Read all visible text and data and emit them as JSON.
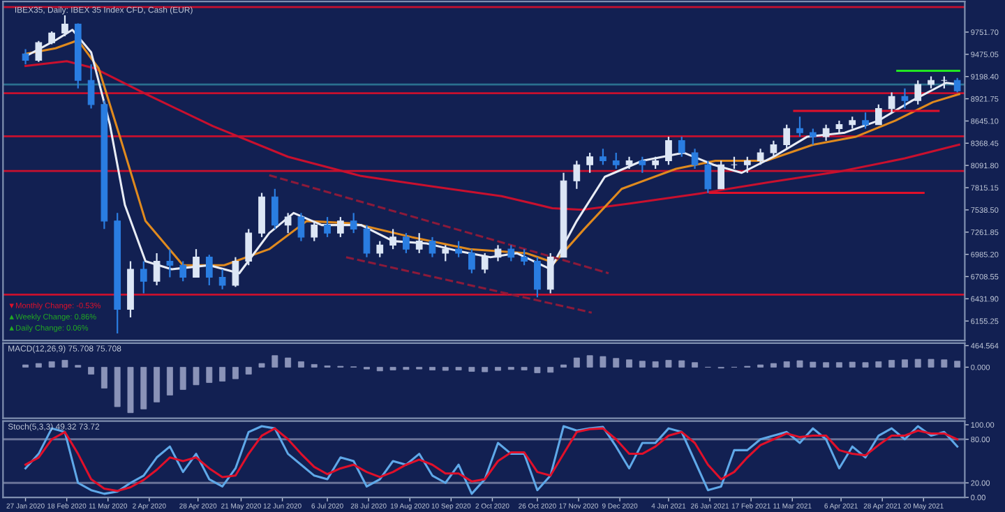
{
  "chart_data": [
    {
      "type": "candlestick",
      "title": "IBEX35, Daily: IBEX 35 Index CFD, Cash (EUR)",
      "tick_labels": "y",
      "xlim": [
        "2020-01-15",
        "2021-06-11"
      ],
      "ylim": [
        5913,
        10132
      ],
      "yticks": [
        {
          "value": 9751.7,
          "label": "9751.70"
        },
        {
          "value": 9475.05,
          "label": "9475.05"
        },
        {
          "value": 9198.4,
          "label": "9198.40"
        },
        {
          "value": 8921.75,
          "label": "8921.75"
        },
        {
          "value": 8645.1,
          "label": "8645.10"
        },
        {
          "value": 8368.45,
          "label": "8368.45"
        },
        {
          "value": 8091.8,
          "label": "8091.80"
        },
        {
          "value": 7815.15,
          "label": "7815.15"
        },
        {
          "value": 7538.5,
          "label": "7538.50"
        },
        {
          "value": 7261.85,
          "label": "7261.85"
        },
        {
          "value": 6985.2,
          "label": "6985.20"
        },
        {
          "value": 6708.55,
          "label": "6708.55"
        },
        {
          "value": 6431.9,
          "label": "6431.90"
        },
        {
          "value": 6155.25,
          "label": "6155.25"
        }
      ],
      "annotations": [
        "▼Monthly Change: -0.53%",
        "▲Weekly Change: 0.86%",
        "▲Daily Change: 0.06%"
      ],
      "ref_lines": [
        {
          "axis": "y",
          "value": 10063,
          "color": "#c8102e",
          "line_style": "solid"
        },
        {
          "axis": "y",
          "value": 9100,
          "color": "#2a6f8f",
          "line_style": "solid"
        },
        {
          "axis": "y",
          "value": 8990,
          "color": "#c8102e",
          "line_style": "solid"
        },
        {
          "axis": "y",
          "value": 8455,
          "color": "#c8102e",
          "line_style": "solid"
        },
        {
          "axis": "y",
          "value": 8023,
          "color": "#c8102e",
          "line_style": "solid"
        },
        {
          "axis": "y",
          "value": 6484,
          "color": "#c8102e",
          "line_style": "solid"
        }
      ],
      "series": [
        {
          "colors": [
            "#2a7de1",
            "#dce6f5",
            "#dce6f5",
            "#dce6f5",
            "#2a7de1",
            "#2a7de1",
            "#2a7de1",
            "#2a7de1",
            "#dce6f5",
            "#2a7de1",
            "#dce6f5",
            "#2a7de1",
            "#2a7de1",
            "#dce6f5",
            "#2a7de1",
            "#2a7de1",
            "#dce6f5",
            "#dce6f5",
            "#dce6f5",
            "#2a7de1",
            "#dce6f5",
            "#2a7de1",
            "#dce6f5",
            "#2a7de1",
            "#dce6f5",
            "#2a7de1",
            "#2a7de1",
            "#dce6f5",
            "#dce6f5",
            "#2a7de1",
            "#dce6f5",
            "#2a7de1",
            "#dce6f5",
            "#2a7de1",
            "#2a7de1",
            "#dce6f5",
            "#dce6f5",
            "#2a7de1",
            "#2a7de1",
            "#2a7de1",
            "#dce6f5",
            "#dce6f5",
            "#dce6f5",
            "#dce6f5",
            "#2a7de1",
            "#2a7de1",
            "#dce6f5",
            "#2a7de1",
            "#dce6f5",
            "#dce6f5",
            "#2a7de1",
            "#2a7de1",
            "#2a7de1",
            "#dce6f5",
            "#dce6f5",
            "#dce6f5",
            "#dce6f5",
            "#dce6f5",
            "#dce6f5",
            "#2a7de1",
            "#2a7de1",
            "#dce6f5",
            "#dce6f5",
            "#dce6f5",
            "#2a7de1",
            "#dce6f5",
            "#dce6f5",
            "#2a7de1",
            "#dce6f5",
            "#dce6f5",
            "#dce6f5",
            "#2a7de1"
          ],
          "x": [
            "2020-01-27",
            "2020-02-03",
            "2020-02-10",
            "2020-02-17",
            "2020-02-24",
            "2020-03-02",
            "2020-03-09",
            "2020-03-16",
            "2020-03-23",
            "2020-03-30",
            "2020-04-06",
            "2020-04-13",
            "2020-04-20",
            "2020-04-27",
            "2020-05-04",
            "2020-05-11",
            "2020-05-18",
            "2020-05-25",
            "2020-06-01",
            "2020-06-08",
            "2020-06-15",
            "2020-06-22",
            "2020-06-29",
            "2020-07-06",
            "2020-07-13",
            "2020-07-20",
            "2020-07-27",
            "2020-08-03",
            "2020-08-10",
            "2020-08-17",
            "2020-08-24",
            "2020-08-31",
            "2020-09-07",
            "2020-09-14",
            "2020-09-21",
            "2020-09-28",
            "2020-10-05",
            "2020-10-12",
            "2020-10-19",
            "2020-10-26",
            "2020-11-02",
            "2020-11-09",
            "2020-11-16",
            "2020-11-23",
            "2020-11-30",
            "2020-12-07",
            "2020-12-14",
            "2020-12-21",
            "2020-12-28",
            "2021-01-04",
            "2021-01-11",
            "2021-01-18",
            "2021-01-25",
            "2021-02-01",
            "2021-02-08",
            "2021-02-15",
            "2021-02-22",
            "2021-03-01",
            "2021-03-08",
            "2021-03-15",
            "2021-03-22",
            "2021-03-29",
            "2021-04-05",
            "2021-04-12",
            "2021-04-19",
            "2021-04-26",
            "2021-05-03",
            "2021-05-10",
            "2021-05-17",
            "2021-05-24",
            "2021-05-31",
            "2021-06-07"
          ],
          "ohlc": [
            [
              9480,
              9540,
              9350,
              9400
            ],
            [
              9400,
              9640,
              9380,
              9620
            ],
            [
              9620,
              9760,
              9600,
              9740
            ],
            [
              9740,
              9960,
              9700,
              9850
            ],
            [
              9850,
              9860,
              9050,
              9150
            ],
            [
              9150,
              9350,
              8800,
              8850
            ],
            [
              8850,
              8900,
              7300,
              7400
            ],
            [
              7400,
              7500,
              6000,
              6300
            ],
            [
              6300,
              6900,
              6200,
              6800
            ],
            [
              6800,
              6900,
              6500,
              6650
            ],
            [
              6650,
              7000,
              6600,
              6900
            ],
            [
              6900,
              7050,
              6700,
              6850
            ],
            [
              6850,
              6900,
              6650,
              6700
            ],
            [
              6700,
              7050,
              6700,
              6950
            ],
            [
              6950,
              6980,
              6600,
              6700
            ],
            [
              6700,
              6800,
              6550,
              6600
            ],
            [
              6600,
              6950,
              6580,
              6900
            ],
            [
              6900,
              7300,
              6850,
              7250
            ],
            [
              7250,
              7750,
              7200,
              7700
            ],
            [
              7700,
              7800,
              7300,
              7350
            ],
            [
              7350,
              7500,
              7250,
              7450
            ],
            [
              7450,
              7500,
              7150,
              7200
            ],
            [
              7200,
              7400,
              7150,
              7350
            ],
            [
              7350,
              7450,
              7200,
              7250
            ],
            [
              7250,
              7450,
              7200,
              7400
            ],
            [
              7400,
              7500,
              7250,
              7300
            ],
            [
              7300,
              7350,
              6950,
              7000
            ],
            [
              7000,
              7150,
              6950,
              7100
            ],
            [
              7100,
              7300,
              7050,
              7200
            ],
            [
              7200,
              7250,
              7000,
              7050
            ],
            [
              7050,
              7250,
              7000,
              7150
            ],
            [
              7150,
              7200,
              6950,
              7000
            ],
            [
              7000,
              7100,
              6900,
              7050
            ],
            [
              7050,
              7150,
              6950,
              7000
            ],
            [
              7000,
              7050,
              6750,
              6800
            ],
            [
              6800,
              7000,
              6750,
              6950
            ],
            [
              6950,
              7100,
              6900,
              7050
            ],
            [
              7050,
              7100,
              6900,
              6950
            ],
            [
              6950,
              7050,
              6850,
              6900
            ],
            [
              6900,
              6950,
              6450,
              6550
            ],
            [
              6550,
              7000,
              6500,
              6950
            ],
            [
              6950,
              8000,
              6950,
              7900
            ],
            [
              7900,
              8150,
              7800,
              8100
            ],
            [
              8100,
              8250,
              8000,
              8200
            ],
            [
              8200,
              8300,
              8100,
              8150
            ],
            [
              8150,
              8250,
              8050,
              8100
            ],
            [
              8100,
              8200,
              8050,
              8150
            ],
            [
              8150,
              8200,
              8000,
              8100
            ],
            [
              8100,
              8200,
              8050,
              8150
            ],
            [
              8150,
              8450,
              8100,
              8400
            ],
            [
              8400,
              8450,
              8200,
              8250
            ],
            [
              8250,
              8300,
              8050,
              8100
            ],
            [
              8100,
              8150,
              7750,
              7800
            ],
            [
              7800,
              8150,
              7800,
              8100
            ],
            [
              8100,
              8200,
              8050,
              8100
            ],
            [
              8100,
              8200,
              8000,
              8150
            ],
            [
              8150,
              8300,
              8100,
              8250
            ],
            [
              8250,
              8400,
              8200,
              8350
            ],
            [
              8350,
              8600,
              8300,
              8550
            ],
            [
              8550,
              8700,
              8450,
              8500
            ],
            [
              8500,
              8550,
              8350,
              8450
            ],
            [
              8450,
              8600,
              8400,
              8550
            ],
            [
              8550,
              8650,
              8500,
              8600
            ],
            [
              8600,
              8700,
              8550,
              8650
            ],
            [
              8650,
              8750,
              8550,
              8600
            ],
            [
              8600,
              8850,
              8600,
              8800
            ],
            [
              8800,
              9000,
              8750,
              8950
            ],
            [
              8950,
              9050,
              8800,
              8900
            ],
            [
              8900,
              9150,
              8850,
              9100
            ],
            [
              9100,
              9200,
              9050,
              9150
            ],
            [
              9150,
              9200,
              9050,
              9150
            ],
            [
              9150,
              9180,
              9000,
              9020
            ]
          ]
        },
        {
          "type": "line",
          "color": "#c8102e",
          "x": [
            "2020-01-27",
            "2020-02-18",
            "2020-03-04",
            "2020-04-02",
            "2020-05-06",
            "2020-06-15",
            "2020-07-24",
            "2020-08-31",
            "2020-10-07",
            "2020-11-03",
            "2020-11-19",
            "2020-12-15",
            "2021-01-20",
            "2021-02-26",
            "2021-04-06",
            "2021-05-10",
            "2021-06-08"
          ],
          "values": [
            9330,
            9390,
            9300,
            8960,
            8580,
            8200,
            7960,
            7830,
            7710,
            7560,
            7540,
            7620,
            7740,
            7880,
            8020,
            8180,
            8350
          ]
        },
        {
          "type": "line",
          "color": "#e08a1e",
          "x": [
            "2020-01-27",
            "2020-02-12",
            "2020-02-24",
            "2020-03-06",
            "2020-03-18",
            "2020-03-31",
            "2020-04-20",
            "2020-05-12",
            "2020-06-05",
            "2020-06-25",
            "2020-07-20",
            "2020-08-20",
            "2020-09-20",
            "2020-10-20",
            "2020-11-04",
            "2020-11-20",
            "2020-12-10",
            "2021-01-08",
            "2021-01-29",
            "2021-02-25",
            "2021-03-22",
            "2021-04-14",
            "2021-05-05",
            "2021-05-25",
            "2021-06-08"
          ],
          "values": [
            9480,
            9550,
            9650,
            9300,
            8400,
            7400,
            6850,
            6850,
            7050,
            7400,
            7370,
            7200,
            7050,
            7000,
            6880,
            7300,
            7800,
            8050,
            8150,
            8150,
            8350,
            8450,
            8650,
            8880,
            8980
          ]
        },
        {
          "type": "line",
          "color": "#e8ecf4",
          "x": [
            "2020-01-27",
            "2020-02-12",
            "2020-02-21",
            "2020-03-02",
            "2020-03-12",
            "2020-03-20",
            "2020-03-31",
            "2020-04-14",
            "2020-05-04",
            "2020-05-20",
            "2020-06-05",
            "2020-06-18",
            "2020-07-03",
            "2020-07-24",
            "2020-08-10",
            "2020-08-28",
            "2020-09-15",
            "2020-10-01",
            "2020-10-15",
            "2020-11-02",
            "2020-11-16",
            "2020-12-01",
            "2020-12-21",
            "2021-01-12",
            "2021-01-28",
            "2021-02-12",
            "2021-03-01",
            "2021-03-19",
            "2021-04-08",
            "2021-04-26",
            "2021-05-14",
            "2021-06-01",
            "2021-06-08"
          ],
          "values": [
            9450,
            9650,
            9780,
            9500,
            8600,
            7600,
            6900,
            6800,
            6850,
            6750,
            7250,
            7500,
            7350,
            7350,
            7150,
            7120,
            7020,
            6950,
            7000,
            6800,
            7400,
            7950,
            8150,
            8250,
            8100,
            8000,
            8200,
            8450,
            8500,
            8650,
            8900,
            9120,
            9100
          ]
        },
        {
          "type": "line",
          "color": "#8b1a3a",
          "line_style": "dashed",
          "x": [
            "2020-06-05",
            "2020-12-03"
          ],
          "values": [
            7970,
            6750
          ]
        },
        {
          "type": "line",
          "color": "#8b1a3a",
          "line_style": "dashed",
          "x": [
            "2020-07-16",
            "2020-11-24"
          ],
          "values": [
            6950,
            6260
          ]
        },
        {
          "type": "line",
          "color": "#e0102a",
          "x": [
            "2021-03-12",
            "2021-05-28"
          ],
          "values": [
            8770,
            8770
          ]
        },
        {
          "type": "line",
          "color": "#e0102a",
          "x": [
            "2021-01-26",
            "2021-05-20"
          ],
          "values": [
            7750,
            7750
          ]
        },
        {
          "type": "line",
          "color": "#22e622",
          "x": [
            "2021-05-06",
            "2021-06-08"
          ],
          "values": [
            9270,
            9270
          ]
        }
      ]
    },
    {
      "type": "bar",
      "tick_labels": "y",
      "xlim": [
        "2020-01-15",
        "2021-06-11"
      ],
      "ylim": [
        -1100,
        520
      ],
      "yticks": [
        464.564,
        {
          "value": 0,
          "label": "0.000"
        }
      ],
      "annotations": [
        "MACD(12,26,9) 75.708 75.708"
      ],
      "series": [
        {
          "color": "#8a93b8",
          "x": [
            "2020-01-27",
            "2020-02-03",
            "2020-02-10",
            "2020-02-17",
            "2020-02-24",
            "2020-03-02",
            "2020-03-09",
            "2020-03-16",
            "2020-03-23",
            "2020-03-30",
            "2020-04-06",
            "2020-04-13",
            "2020-04-20",
            "2020-04-27",
            "2020-05-04",
            "2020-05-11",
            "2020-05-18",
            "2020-05-25",
            "2020-06-01",
            "2020-06-08",
            "2020-06-15",
            "2020-06-22",
            "2020-06-29",
            "2020-07-06",
            "2020-07-13",
            "2020-07-20",
            "2020-07-27",
            "2020-08-03",
            "2020-08-10",
            "2020-08-17",
            "2020-08-24",
            "2020-08-31",
            "2020-09-07",
            "2020-09-14",
            "2020-09-21",
            "2020-09-28",
            "2020-10-05",
            "2020-10-12",
            "2020-10-19",
            "2020-10-26",
            "2020-11-02",
            "2020-11-09",
            "2020-11-16",
            "2020-11-23",
            "2020-11-30",
            "2020-12-07",
            "2020-12-14",
            "2020-12-21",
            "2020-12-28",
            "2021-01-04",
            "2021-01-11",
            "2021-01-18",
            "2021-01-25",
            "2021-02-01",
            "2021-02-08",
            "2021-02-15",
            "2021-02-22",
            "2021-03-01",
            "2021-03-08",
            "2021-03-15",
            "2021-03-22",
            "2021-03-29",
            "2021-04-05",
            "2021-04-12",
            "2021-04-19",
            "2021-04-26",
            "2021-05-03",
            "2021-05-10",
            "2021-05-17",
            "2021-05-24",
            "2021-05-31",
            "2021-06-07"
          ],
          "values": [
            50,
            80,
            120,
            150,
            40,
            -150,
            -450,
            -850,
            -980,
            -900,
            -750,
            -600,
            -480,
            -380,
            -330,
            -300,
            -250,
            -150,
            80,
            250,
            200,
            120,
            60,
            30,
            20,
            10,
            -40,
            -80,
            -60,
            -50,
            -40,
            -60,
            -70,
            -60,
            -90,
            -100,
            -70,
            -50,
            -60,
            -120,
            -110,
            50,
            200,
            250,
            230,
            190,
            160,
            130,
            120,
            150,
            140,
            100,
            0,
            -20,
            0,
            20,
            50,
            80,
            120,
            140,
            110,
            100,
            100,
            110,
            100,
            120,
            150,
            160,
            170,
            170,
            160,
            130
          ]
        }
      ]
    },
    {
      "type": "line",
      "xlim": [
        "2020-01-15",
        "2021-06-11"
      ],
      "ylim": [
        0,
        105
      ],
      "yticks": [
        {
          "value": 100,
          "label": "100.00"
        },
        {
          "value": 80,
          "label": "80.00"
        },
        {
          "value": 20,
          "label": "20.00"
        },
        {
          "value": 0,
          "label": "0.00"
        }
      ],
      "xticks": [
        {
          "value": "2020-01-27",
          "label": "27 Jan 2020"
        },
        {
          "value": "2020-02-18",
          "label": "18 Feb 2020"
        },
        {
          "value": "2020-03-11",
          "label": "11 Mar 2020"
        },
        {
          "value": "2020-04-02",
          "label": "2 Apr 2020"
        },
        {
          "value": "2020-04-28",
          "label": "28 Apr 2020"
        },
        {
          "value": "2020-05-21",
          "label": "21 May 2020"
        },
        {
          "value": "2020-06-12",
          "label": "12 Jun 2020"
        },
        {
          "value": "2020-07-06",
          "label": "6 Jul 2020"
        },
        {
          "value": "2020-07-28",
          "label": "28 Jul 2020"
        },
        {
          "value": "2020-08-19",
          "label": "19 Aug 2020"
        },
        {
          "value": "2020-09-10",
          "label": "10 Sep 2020"
        },
        {
          "value": "2020-10-02",
          "label": "2 Oct 2020"
        },
        {
          "value": "2020-10-26",
          "label": "26 Oct 2020"
        },
        {
          "value": "2020-11-17",
          "label": "17 Nov 2020"
        },
        {
          "value": "2020-12-09",
          "label": "9 Dec 2020"
        },
        {
          "value": "2021-01-04",
          "label": "4 Jan 2021"
        },
        {
          "value": "2021-01-26",
          "label": "26 Jan 2021"
        },
        {
          "value": "2021-02-17",
          "label": "17 Feb 2021"
        },
        {
          "value": "2021-03-11",
          "label": "11 Mar 2021"
        },
        {
          "value": "2021-04-06",
          "label": "6 Apr 2021"
        },
        {
          "value": "2021-04-28",
          "label": "28 Apr 2021"
        },
        {
          "value": "2021-05-20",
          "label": "20 May 2021"
        }
      ],
      "annotations": [
        "Stoch(5,3,3) 49.32 73.72"
      ],
      "ref_lines": [
        {
          "axis": "y",
          "value": 80,
          "color": "#6a7398",
          "line_style": "solid"
        },
        {
          "axis": "y",
          "value": 20,
          "color": "#6a7398",
          "line_style": "solid"
        }
      ],
      "series": [
        {
          "color": "#5fa8e8",
          "x": [
            "2020-01-27",
            "2020-02-03",
            "2020-02-10",
            "2020-02-17",
            "2020-02-24",
            "2020-03-02",
            "2020-03-09",
            "2020-03-16",
            "2020-03-23",
            "2020-03-30",
            "2020-04-06",
            "2020-04-13",
            "2020-04-20",
            "2020-04-27",
            "2020-05-04",
            "2020-05-11",
            "2020-05-18",
            "2020-05-25",
            "2020-06-01",
            "2020-06-08",
            "2020-06-15",
            "2020-06-22",
            "2020-06-29",
            "2020-07-06",
            "2020-07-13",
            "2020-07-20",
            "2020-07-27",
            "2020-08-03",
            "2020-08-10",
            "2020-08-17",
            "2020-08-24",
            "2020-08-31",
            "2020-09-07",
            "2020-09-14",
            "2020-09-21",
            "2020-09-28",
            "2020-10-05",
            "2020-10-12",
            "2020-10-19",
            "2020-10-26",
            "2020-11-02",
            "2020-11-09",
            "2020-11-16",
            "2020-11-23",
            "2020-11-30",
            "2020-12-07",
            "2020-12-14",
            "2020-12-21",
            "2020-12-28",
            "2021-01-04",
            "2021-01-11",
            "2021-01-18",
            "2021-01-25",
            "2021-02-01",
            "2021-02-08",
            "2021-02-15",
            "2021-02-22",
            "2021-03-01",
            "2021-03-08",
            "2021-03-15",
            "2021-03-22",
            "2021-03-29",
            "2021-04-05",
            "2021-04-12",
            "2021-04-19",
            "2021-04-26",
            "2021-05-03",
            "2021-05-10",
            "2021-05-17",
            "2021-05-24",
            "2021-05-31",
            "2021-06-07"
          ],
          "values": [
            40,
            60,
            95,
            90,
            20,
            10,
            5,
            8,
            20,
            30,
            55,
            70,
            35,
            60,
            25,
            15,
            40,
            90,
            98,
            95,
            60,
            45,
            30,
            25,
            55,
            50,
            15,
            25,
            50,
            45,
            60,
            30,
            20,
            45,
            5,
            25,
            75,
            60,
            60,
            10,
            30,
            98,
            92,
            95,
            97,
            70,
            40,
            75,
            75,
            95,
            90,
            50,
            10,
            15,
            65,
            65,
            80,
            85,
            90,
            75,
            95,
            80,
            40,
            70,
            55,
            85,
            95,
            80,
            98,
            85,
            90,
            70
          ]
        },
        {
          "color": "#e0102a",
          "x": [
            "2020-01-27",
            "2020-02-03",
            "2020-02-10",
            "2020-02-17",
            "2020-02-24",
            "2020-03-02",
            "2020-03-09",
            "2020-03-16",
            "2020-03-23",
            "2020-03-30",
            "2020-04-06",
            "2020-04-13",
            "2020-04-20",
            "2020-04-27",
            "2020-05-04",
            "2020-05-11",
            "2020-05-18",
            "2020-05-25",
            "2020-06-01",
            "2020-06-08",
            "2020-06-15",
            "2020-06-22",
            "2020-06-29",
            "2020-07-06",
            "2020-07-13",
            "2020-07-20",
            "2020-07-27",
            "2020-08-03",
            "2020-08-10",
            "2020-08-17",
            "2020-08-24",
            "2020-08-31",
            "2020-09-07",
            "2020-09-14",
            "2020-09-21",
            "2020-09-28",
            "2020-10-05",
            "2020-10-12",
            "2020-10-19",
            "2020-10-26",
            "2020-11-02",
            "2020-11-09",
            "2020-11-16",
            "2020-11-23",
            "2020-11-30",
            "2020-12-07",
            "2020-12-14",
            "2020-12-21",
            "2020-12-28",
            "2021-01-04",
            "2021-01-11",
            "2021-01-18",
            "2021-01-25",
            "2021-02-01",
            "2021-02-08",
            "2021-02-15",
            "2021-02-22",
            "2021-03-01",
            "2021-03-08",
            "2021-03-15",
            "2021-03-22",
            "2021-03-29",
            "2021-04-05",
            "2021-04-12",
            "2021-04-19",
            "2021-04-26",
            "2021-05-03",
            "2021-05-10",
            "2021-05-17",
            "2021-05-24",
            "2021-05-31",
            "2021-06-07"
          ],
          "values": [
            45,
            55,
            80,
            90,
            60,
            25,
            12,
            9,
            14,
            24,
            38,
            55,
            50,
            55,
            40,
            28,
            30,
            60,
            85,
            95,
            80,
            60,
            42,
            32,
            40,
            45,
            35,
            28,
            35,
            45,
            52,
            45,
            33,
            33,
            22,
            25,
            50,
            62,
            62,
            35,
            30,
            60,
            90,
            94,
            95,
            80,
            60,
            60,
            70,
            85,
            90,
            75,
            45,
            25,
            35,
            55,
            72,
            80,
            88,
            83,
            85,
            85,
            65,
            60,
            58,
            72,
            85,
            85,
            92,
            88,
            88,
            80
          ]
        }
      ]
    }
  ]
}
